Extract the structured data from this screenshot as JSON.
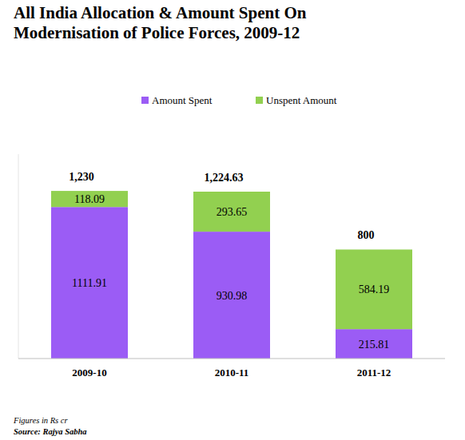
{
  "chart_data": {
    "type": "bar",
    "stacked": true,
    "title": "All India Allocation & Amount Spent On Modernisation of Police Forces, 2009-12",
    "categories": [
      "2009-10",
      "2010-11",
      "2011-12"
    ],
    "series": [
      {
        "name": "Amount Spent",
        "color": "#9b5cf5",
        "values": [
          1111.91,
          930.98,
          215.81
        ]
      },
      {
        "name": "Unspent Amount",
        "color": "#92d050",
        "values": [
          118.09,
          293.65,
          584.19
        ]
      }
    ],
    "totals": [
      1230,
      1224.63,
      800
    ],
    "total_labels": [
      "1,230",
      "1,224.63",
      "800"
    ],
    "ylim": [
      0,
      1500
    ],
    "data_labels": true,
    "tick_labels": "x",
    "grid": false,
    "legend": "top",
    "annotations": [
      "Figures in Rs cr",
      "Source: Rajya Sabha"
    ]
  }
}
